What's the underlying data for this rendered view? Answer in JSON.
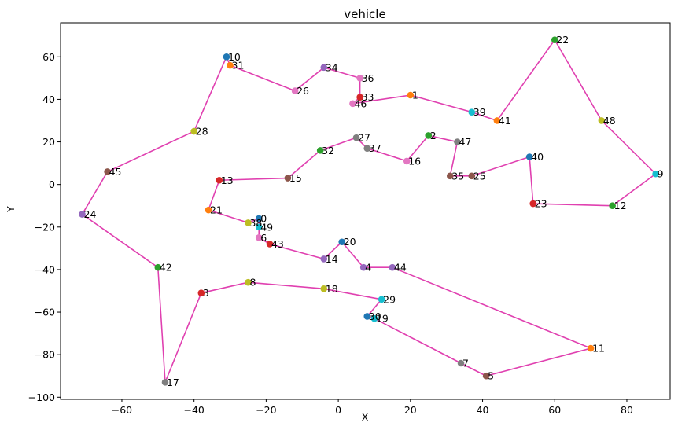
{
  "chart_data": {
    "type": "scatter",
    "title": "vehicle",
    "xlabel": "X",
    "ylabel": "Y",
    "xlim": [
      -77,
      92
    ],
    "ylim": [
      -101,
      76
    ],
    "xticks": [
      -60,
      -40,
      -20,
      0,
      20,
      40,
      60,
      80
    ],
    "yticks": [
      -100,
      -80,
      -60,
      -40,
      -20,
      0,
      20,
      40,
      60
    ],
    "grid": false,
    "route_color": "#e040b0",
    "points": [
      {
        "id": "0",
        "x": -22,
        "y": -16,
        "color": "#1f77b4"
      },
      {
        "id": "1",
        "x": 20,
        "y": 42,
        "color": "#ff7f0e"
      },
      {
        "id": "2",
        "x": 25,
        "y": 23,
        "color": "#2ca02c"
      },
      {
        "id": "3",
        "x": -38,
        "y": -51,
        "color": "#d62728"
      },
      {
        "id": "4",
        "x": 7,
        "y": -39,
        "color": "#9467bd"
      },
      {
        "id": "5",
        "x": 41,
        "y": -90,
        "color": "#8c564b"
      },
      {
        "id": "6",
        "x": -22,
        "y": -25,
        "color": "#e377c2"
      },
      {
        "id": "7",
        "x": 34,
        "y": -84,
        "color": "#7f7f7f"
      },
      {
        "id": "8",
        "x": -25,
        "y": -46,
        "color": "#bcbd22"
      },
      {
        "id": "9",
        "x": 88,
        "y": 5,
        "color": "#17becf"
      },
      {
        "id": "10",
        "x": -31,
        "y": 60,
        "color": "#1f77b4"
      },
      {
        "id": "11",
        "x": 70,
        "y": -77,
        "color": "#ff7f0e"
      },
      {
        "id": "12",
        "x": 76,
        "y": -10,
        "color": "#2ca02c"
      },
      {
        "id": "13",
        "x": -33,
        "y": 2,
        "color": "#d62728"
      },
      {
        "id": "14",
        "x": -4,
        "y": -35,
        "color": "#9467bd"
      },
      {
        "id": "15",
        "x": -14,
        "y": 3,
        "color": "#8c564b"
      },
      {
        "id": "16",
        "x": 19,
        "y": 11,
        "color": "#e377c2"
      },
      {
        "id": "17",
        "x": -48,
        "y": -93,
        "color": "#7f7f7f"
      },
      {
        "id": "18",
        "x": -4,
        "y": -49,
        "color": "#bcbd22"
      },
      {
        "id": "19",
        "x": 10,
        "y": -63,
        "color": "#17becf"
      },
      {
        "id": "20",
        "x": 1,
        "y": -27,
        "color": "#1f77b4"
      },
      {
        "id": "21",
        "x": -36,
        "y": -12,
        "color": "#ff7f0e"
      },
      {
        "id": "22",
        "x": 60,
        "y": 68,
        "color": "#2ca02c"
      },
      {
        "id": "23",
        "x": 54,
        "y": -9,
        "color": "#d62728"
      },
      {
        "id": "24",
        "x": -71,
        "y": -14,
        "color": "#9467bd"
      },
      {
        "id": "25",
        "x": 37,
        "y": 4,
        "color": "#8c564b"
      },
      {
        "id": "26",
        "x": -12,
        "y": 44,
        "color": "#e377c2"
      },
      {
        "id": "27",
        "x": 5,
        "y": 22,
        "color": "#7f7f7f"
      },
      {
        "id": "28",
        "x": -40,
        "y": 25,
        "color": "#bcbd22"
      },
      {
        "id": "29",
        "x": 12,
        "y": -54,
        "color": "#17becf"
      },
      {
        "id": "30",
        "x": 8,
        "y": -62,
        "color": "#1f77b4"
      },
      {
        "id": "31",
        "x": -30,
        "y": 56,
        "color": "#ff7f0e"
      },
      {
        "id": "32",
        "x": -5,
        "y": 16,
        "color": "#2ca02c"
      },
      {
        "id": "33",
        "x": 6,
        "y": 41,
        "color": "#d62728"
      },
      {
        "id": "34",
        "x": -4,
        "y": 55,
        "color": "#9467bd"
      },
      {
        "id": "35",
        "x": 31,
        "y": 4,
        "color": "#8c564b"
      },
      {
        "id": "36",
        "x": 6,
        "y": 50,
        "color": "#e377c2"
      },
      {
        "id": "37",
        "x": 8,
        "y": 17,
        "color": "#7f7f7f"
      },
      {
        "id": "38",
        "x": -25,
        "y": -18,
        "color": "#bcbd22"
      },
      {
        "id": "39",
        "x": 37,
        "y": 34,
        "color": "#17becf"
      },
      {
        "id": "40",
        "x": 53,
        "y": 13,
        "color": "#1f77b4"
      },
      {
        "id": "41",
        "x": 44,
        "y": 30,
        "color": "#ff7f0e"
      },
      {
        "id": "42",
        "x": -50,
        "y": -39,
        "color": "#2ca02c"
      },
      {
        "id": "43",
        "x": -19,
        "y": -28,
        "color": "#d62728"
      },
      {
        "id": "44",
        "x": 15,
        "y": -39,
        "color": "#9467bd"
      },
      {
        "id": "45",
        "x": -64,
        "y": 6,
        "color": "#8c564b"
      },
      {
        "id": "46",
        "x": 4,
        "y": 38,
        "color": "#e377c2"
      },
      {
        "id": "47",
        "x": 33,
        "y": 20,
        "color": "#7f7f7f"
      },
      {
        "id": "48",
        "x": 73,
        "y": 30,
        "color": "#bcbd22"
      },
      {
        "id": "49",
        "x": -22,
        "y": -20,
        "color": "#17becf"
      }
    ],
    "route": [
      "13",
      "15",
      "32",
      "27",
      "37",
      "16",
      "2",
      "47",
      "35",
      "25",
      "40",
      "23",
      "12",
      "9",
      "48",
      "22",
      "41",
      "39",
      "1",
      "46",
      "33",
      "36",
      "34",
      "26",
      "31",
      "10",
      "28",
      "45",
      "24",
      "42",
      "17",
      "3",
      "8",
      "18",
      "29",
      "30",
      "19",
      "7",
      "5",
      "11",
      "44",
      "4",
      "20",
      "14",
      "43",
      "6",
      "49",
      "0",
      "38",
      "21",
      "13"
    ]
  }
}
